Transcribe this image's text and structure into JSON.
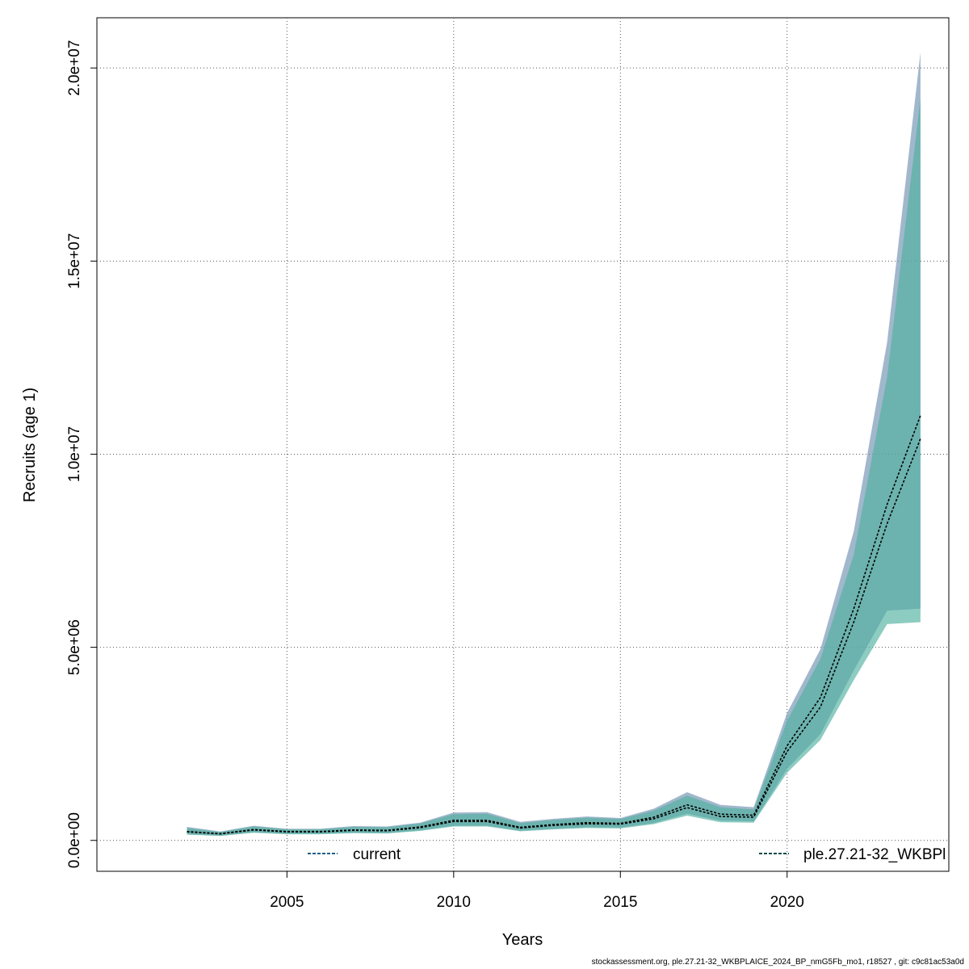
{
  "chart_data": {
    "type": "area",
    "xlabel": "Years",
    "ylabel": "Recruits (age 1)",
    "xlim": [
      1999.3,
      2024.85
    ],
    "ylim": [
      -800000,
      21300000
    ],
    "x_ticks": [
      2005,
      2010,
      2015,
      2020
    ],
    "x_tick_labels": [
      "2005",
      "2010",
      "2015",
      "2020"
    ],
    "y_ticks": [
      0,
      5000000,
      10000000,
      15000000,
      20000000
    ],
    "y_tick_labels": [
      "0.0e+00",
      "5.0e+06",
      "1.0e+07",
      "1.5e+07",
      "2.0e+07"
    ],
    "grid": true,
    "years": [
      2002,
      2003,
      2004,
      2005,
      2006,
      2007,
      2008,
      2009,
      2010,
      2011,
      2012,
      2013,
      2014,
      2015,
      2016,
      2017,
      2018,
      2019,
      2020,
      2021,
      2022,
      2023,
      2024
    ],
    "series": [
      {
        "name": "current",
        "line_color": "#1f5f8b",
        "band_color": "#6f91b0",
        "estimate": [
          230000,
          175000,
          280000,
          230000,
          230000,
          270000,
          260000,
          350000,
          520000,
          520000,
          340000,
          410000,
          460000,
          440000,
          600000,
          920000,
          680000,
          650000,
          2450000,
          3700000,
          6000000,
          8700000,
          11000000
        ],
        "lower": [
          160000,
          120000,
          210000,
          170000,
          170000,
          200000,
          190000,
          260000,
          380000,
          380000,
          250000,
          300000,
          340000,
          330000,
          450000,
          690000,
          510000,
          490000,
          1850000,
          2750000,
          4400000,
          5950000,
          6000000
        ],
        "upper": [
          350000,
          230000,
          380000,
          300000,
          300000,
          370000,
          360000,
          460000,
          720000,
          730000,
          480000,
          560000,
          620000,
          580000,
          820000,
          1250000,
          920000,
          860000,
          3300000,
          4950000,
          8000000,
          12900000,
          20400000
        ]
      },
      {
        "name": "ple.27.21-32_WKBPl",
        "line_color": "#0b4a4a",
        "band_color": "#50b0a0",
        "estimate": [
          220000,
          170000,
          270000,
          220000,
          220000,
          260000,
          250000,
          330000,
          490000,
          490000,
          320000,
          390000,
          430000,
          420000,
          560000,
          850000,
          620000,
          600000,
          2300000,
          3450000,
          5650000,
          8200000,
          10400000
        ],
        "lower": [
          150000,
          115000,
          200000,
          160000,
          160000,
          190000,
          180000,
          245000,
          360000,
          360000,
          235000,
          285000,
          320000,
          310000,
          420000,
          640000,
          470000,
          460000,
          1750000,
          2600000,
          4150000,
          5600000,
          5650000
        ],
        "upper": [
          320000,
          220000,
          360000,
          290000,
          290000,
          350000,
          340000,
          440000,
          680000,
          690000,
          450000,
          530000,
          590000,
          550000,
          770000,
          1160000,
          860000,
          800000,
          3100000,
          4700000,
          7400000,
          12000000,
          19200000
        ]
      }
    ],
    "legend": [
      "current",
      "ple.27.21-32_WKBPl"
    ]
  },
  "footer": "stockassessment.org, ple.27.21-32_WKBPLAICE_2024_BP_nmG5Fb_mo1, r18527 , git: c9c81ac53a0d"
}
